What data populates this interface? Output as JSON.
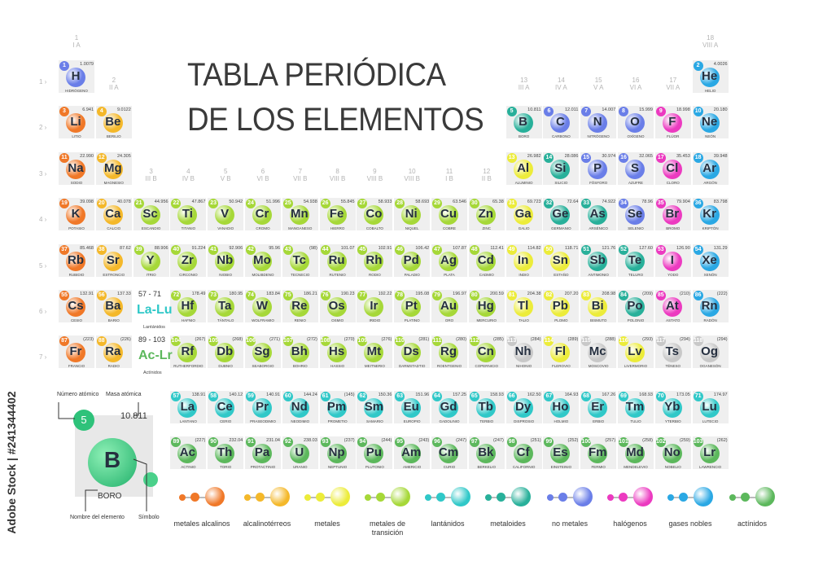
{
  "title": {
    "line1": "TABLA PERIÓDICA",
    "line2": "DE LOS ELEMENTOS"
  },
  "colors": {
    "alkali": "#f07828",
    "alkaline": "#f4b82a",
    "transition": "#a6d838",
    "post": "#ecec3a",
    "metalloid": "#28b09a",
    "nonmetal": "#6a7ee8",
    "halogen": "#ec3ac0",
    "noble": "#2aa8e4",
    "lanthanide": "#30c8c8",
    "actinide": "#5cb85c",
    "unknown": "#c8c8c8"
  },
  "groups": [
    {
      "n": "1",
      "r": "I A"
    },
    {
      "n": "2",
      "r": "II A"
    },
    {
      "n": "3",
      "r": "III B"
    },
    {
      "n": "4",
      "r": "IV B"
    },
    {
      "n": "5",
      "r": "V B"
    },
    {
      "n": "6",
      "r": "VI B"
    },
    {
      "n": "7",
      "r": "VII B"
    },
    {
      "n": "8",
      "r": "VIII B"
    },
    {
      "n": "9",
      "r": "VIII B"
    },
    {
      "n": "10",
      "r": "VIII B"
    },
    {
      "n": "11",
      "r": "I B"
    },
    {
      "n": "12",
      "r": "II B"
    },
    {
      "n": "13",
      "r": "III A"
    },
    {
      "n": "14",
      "r": "IV A"
    },
    {
      "n": "15",
      "r": "V A"
    },
    {
      "n": "16",
      "r": "VI A"
    },
    {
      "n": "17",
      "r": "VII A"
    },
    {
      "n": "18",
      "r": "VIII A"
    }
  ],
  "periods": [
    "1",
    "2",
    "3",
    "4",
    "5",
    "6",
    "7"
  ],
  "elements": [
    {
      "z": "1",
      "s": "H",
      "n": "HIDRÓGENO",
      "m": "1.0079",
      "r": 1,
      "c": 1,
      "t": "nonmetal"
    },
    {
      "z": "2",
      "s": "He",
      "n": "HELIO",
      "m": "4.0026",
      "r": 1,
      "c": 18,
      "t": "noble"
    },
    {
      "z": "3",
      "s": "Li",
      "n": "LITIO",
      "m": "6.941",
      "r": 2,
      "c": 1,
      "t": "alkali"
    },
    {
      "z": "4",
      "s": "Be",
      "n": "BERILIO",
      "m": "9.0122",
      "r": 2,
      "c": 2,
      "t": "alkaline"
    },
    {
      "z": "5",
      "s": "B",
      "n": "BORO",
      "m": "10.811",
      "r": 2,
      "c": 13,
      "t": "metalloid"
    },
    {
      "z": "6",
      "s": "C",
      "n": "CARBONO",
      "m": "12.011",
      "r": 2,
      "c": 14,
      "t": "nonmetal"
    },
    {
      "z": "7",
      "s": "N",
      "n": "NITRÓGENO",
      "m": "14.007",
      "r": 2,
      "c": 15,
      "t": "nonmetal"
    },
    {
      "z": "8",
      "s": "O",
      "n": "OXÍGENO",
      "m": "15.999",
      "r": 2,
      "c": 16,
      "t": "nonmetal"
    },
    {
      "z": "9",
      "s": "F",
      "n": "FLÚOR",
      "m": "18.998",
      "r": 2,
      "c": 17,
      "t": "halogen"
    },
    {
      "z": "10",
      "s": "Ne",
      "n": "NEÓN",
      "m": "20.180",
      "r": 2,
      "c": 18,
      "t": "noble"
    },
    {
      "z": "11",
      "s": "Na",
      "n": "SODIO",
      "m": "22.990",
      "r": 3,
      "c": 1,
      "t": "alkali"
    },
    {
      "z": "12",
      "s": "Mg",
      "n": "MAGNESIO",
      "m": "24.305",
      "r": 3,
      "c": 2,
      "t": "alkaline"
    },
    {
      "z": "13",
      "s": "Al",
      "n": "ALUMINIO",
      "m": "26.982",
      "r": 3,
      "c": 13,
      "t": "post"
    },
    {
      "z": "14",
      "s": "Si",
      "n": "SILICIO",
      "m": "28.086",
      "r": 3,
      "c": 14,
      "t": "metalloid"
    },
    {
      "z": "15",
      "s": "P",
      "n": "FÓSFORO",
      "m": "30.974",
      "r": 3,
      "c": 15,
      "t": "nonmetal"
    },
    {
      "z": "16",
      "s": "S",
      "n": "AZUFRE",
      "m": "32.065",
      "r": 3,
      "c": 16,
      "t": "nonmetal"
    },
    {
      "z": "17",
      "s": "Cl",
      "n": "CLORO",
      "m": "35.453",
      "r": 3,
      "c": 17,
      "t": "halogen"
    },
    {
      "z": "18",
      "s": "Ar",
      "n": "ARGÓN",
      "m": "39.948",
      "r": 3,
      "c": 18,
      "t": "noble"
    },
    {
      "z": "19",
      "s": "K",
      "n": "POTASIO",
      "m": "39.098",
      "r": 4,
      "c": 1,
      "t": "alkali"
    },
    {
      "z": "20",
      "s": "Ca",
      "n": "CALCIO",
      "m": "40.078",
      "r": 4,
      "c": 2,
      "t": "alkaline"
    },
    {
      "z": "21",
      "s": "Sc",
      "n": "ESCANDIO",
      "m": "44.956",
      "r": 4,
      "c": 3,
      "t": "transition"
    },
    {
      "z": "22",
      "s": "Ti",
      "n": "TITANIO",
      "m": "47.867",
      "r": 4,
      "c": 4,
      "t": "transition"
    },
    {
      "z": "23",
      "s": "V",
      "n": "VANADIO",
      "m": "50.942",
      "r": 4,
      "c": 5,
      "t": "transition"
    },
    {
      "z": "24",
      "s": "Cr",
      "n": "CROMO",
      "m": "51.996",
      "r": 4,
      "c": 6,
      "t": "transition"
    },
    {
      "z": "25",
      "s": "Mn",
      "n": "MANGANESO",
      "m": "54.938",
      "r": 4,
      "c": 7,
      "t": "transition"
    },
    {
      "z": "26",
      "s": "Fe",
      "n": "HIERRO",
      "m": "55.845",
      "r": 4,
      "c": 8,
      "t": "transition"
    },
    {
      "z": "27",
      "s": "Co",
      "n": "COBALTO",
      "m": "58.933",
      "r": 4,
      "c": 9,
      "t": "transition"
    },
    {
      "z": "28",
      "s": "Ni",
      "n": "NIQUEL",
      "m": "58.693",
      "r": 4,
      "c": 10,
      "t": "transition"
    },
    {
      "z": "29",
      "s": "Cu",
      "n": "COBRE",
      "m": "63.546",
      "r": 4,
      "c": 11,
      "t": "transition"
    },
    {
      "z": "30",
      "s": "Zn",
      "n": "ZINC",
      "m": "65.38",
      "r": 4,
      "c": 12,
      "t": "transition"
    },
    {
      "z": "31",
      "s": "Ga",
      "n": "GALIO",
      "m": "69.723",
      "r": 4,
      "c": 13,
      "t": "post"
    },
    {
      "z": "32",
      "s": "Ge",
      "n": "GERMANIO",
      "m": "72.64",
      "r": 4,
      "c": 14,
      "t": "metalloid"
    },
    {
      "z": "33",
      "s": "As",
      "n": "ARSÉNICO",
      "m": "74.922",
      "r": 4,
      "c": 15,
      "t": "metalloid"
    },
    {
      "z": "34",
      "s": "Se",
      "n": "SELENIO",
      "m": "78.96",
      "r": 4,
      "c": 16,
      "t": "nonmetal"
    },
    {
      "z": "35",
      "s": "Br",
      "n": "BROMO",
      "m": "79.904",
      "r": 4,
      "c": 17,
      "t": "halogen"
    },
    {
      "z": "36",
      "s": "Kr",
      "n": "KRIPTÓN",
      "m": "83.798",
      "r": 4,
      "c": 18,
      "t": "noble"
    },
    {
      "z": "37",
      "s": "Rb",
      "n": "RUBIDIO",
      "m": "85.468",
      "r": 5,
      "c": 1,
      "t": "alkali"
    },
    {
      "z": "38",
      "s": "Sr",
      "n": "ESTRONCIO",
      "m": "87.62",
      "r": 5,
      "c": 2,
      "t": "alkaline"
    },
    {
      "z": "39",
      "s": "Y",
      "n": "ITRIO",
      "m": "88.906",
      "r": 5,
      "c": 3,
      "t": "transition"
    },
    {
      "z": "40",
      "s": "Zr",
      "n": "CIRCONIO",
      "m": "91.224",
      "r": 5,
      "c": 4,
      "t": "transition"
    },
    {
      "z": "41",
      "s": "Nb",
      "n": "NIOBIO",
      "m": "92.906",
      "r": 5,
      "c": 5,
      "t": "transition"
    },
    {
      "z": "42",
      "s": "Mo",
      "n": "MOLIBDENO",
      "m": "95.96",
      "r": 5,
      "c": 6,
      "t": "transition"
    },
    {
      "z": "43",
      "s": "Tc",
      "n": "TECNECIO",
      "m": "(98)",
      "r": 5,
      "c": 7,
      "t": "transition"
    },
    {
      "z": "44",
      "s": "Ru",
      "n": "RUTENIO",
      "m": "101.07",
      "r": 5,
      "c": 8,
      "t": "transition"
    },
    {
      "z": "45",
      "s": "Rh",
      "n": "RODIO",
      "m": "102.91",
      "r": 5,
      "c": 9,
      "t": "transition"
    },
    {
      "z": "46",
      "s": "Pd",
      "n": "PALADIO",
      "m": "106.42",
      "r": 5,
      "c": 10,
      "t": "transition"
    },
    {
      "z": "47",
      "s": "Ag",
      "n": "PLATA",
      "m": "107.87",
      "r": 5,
      "c": 11,
      "t": "transition"
    },
    {
      "z": "48",
      "s": "Cd",
      "n": "CADMIO",
      "m": "112.41",
      "r": 5,
      "c": 12,
      "t": "transition"
    },
    {
      "z": "49",
      "s": "In",
      "n": "INDIO",
      "m": "114.82",
      "r": 5,
      "c": 13,
      "t": "post"
    },
    {
      "z": "50",
      "s": "Sn",
      "n": "ESTAÑO",
      "m": "118.71",
      "r": 5,
      "c": 14,
      "t": "post"
    },
    {
      "z": "51",
      "s": "Sb",
      "n": "ANTIMONIO",
      "m": "121.76",
      "r": 5,
      "c": 15,
      "t": "metalloid"
    },
    {
      "z": "52",
      "s": "Te",
      "n": "TELURO",
      "m": "127.60",
      "r": 5,
      "c": 16,
      "t": "metalloid"
    },
    {
      "z": "53",
      "s": "I",
      "n": "YODO",
      "m": "126.90",
      "r": 5,
      "c": 17,
      "t": "halogen"
    },
    {
      "z": "54",
      "s": "Xe",
      "n": "XENÓN",
      "m": "131.29",
      "r": 5,
      "c": 18,
      "t": "noble"
    },
    {
      "z": "55",
      "s": "Cs",
      "n": "CESIO",
      "m": "132.91",
      "r": 6,
      "c": 1,
      "t": "alkali"
    },
    {
      "z": "56",
      "s": "Ba",
      "n": "BARIO",
      "m": "137.33",
      "r": 6,
      "c": 2,
      "t": "alkaline"
    },
    {
      "z": "72",
      "s": "Hf",
      "n": "HAFNIO",
      "m": "178.49",
      "r": 6,
      "c": 4,
      "t": "transition"
    },
    {
      "z": "73",
      "s": "Ta",
      "n": "TÁNTALO",
      "m": "180.95",
      "r": 6,
      "c": 5,
      "t": "transition"
    },
    {
      "z": "74",
      "s": "W",
      "n": "WOLFRAMIO",
      "m": "183.84",
      "r": 6,
      "c": 6,
      "t": "transition"
    },
    {
      "z": "75",
      "s": "Re",
      "n": "RENIO",
      "m": "186.21",
      "r": 6,
      "c": 7,
      "t": "transition"
    },
    {
      "z": "76",
      "s": "Os",
      "n": "OSMIO",
      "m": "190.23",
      "r": 6,
      "c": 8,
      "t": "transition"
    },
    {
      "z": "77",
      "s": "Ir",
      "n": "IRIDIO",
      "m": "192.22",
      "r": 6,
      "c": 9,
      "t": "transition"
    },
    {
      "z": "78",
      "s": "Pt",
      "n": "PLATINO",
      "m": "195.08",
      "r": 6,
      "c": 10,
      "t": "transition"
    },
    {
      "z": "79",
      "s": "Au",
      "n": "ORO",
      "m": "196.97",
      "r": 6,
      "c": 11,
      "t": "transition"
    },
    {
      "z": "80",
      "s": "Hg",
      "n": "MERCURIO",
      "m": "200.59",
      "r": 6,
      "c": 12,
      "t": "transition"
    },
    {
      "z": "81",
      "s": "Tl",
      "n": "TALIO",
      "m": "204.38",
      "r": 6,
      "c": 13,
      "t": "post"
    },
    {
      "z": "82",
      "s": "Pb",
      "n": "PLOMO",
      "m": "207.20",
      "r": 6,
      "c": 14,
      "t": "post"
    },
    {
      "z": "83",
      "s": "Bi",
      "n": "BISMUTO",
      "m": "208.98",
      "r": 6,
      "c": 15,
      "t": "post"
    },
    {
      "z": "84",
      "s": "Po",
      "n": "POLONIO",
      "m": "(209)",
      "r": 6,
      "c": 16,
      "t": "metalloid"
    },
    {
      "z": "85",
      "s": "At",
      "n": "ASTATO",
      "m": "(210)",
      "r": 6,
      "c": 17,
      "t": "halogen"
    },
    {
      "z": "86",
      "s": "Rn",
      "n": "RADÓN",
      "m": "(222)",
      "r": 6,
      "c": 18,
      "t": "noble"
    },
    {
      "z": "87",
      "s": "Fr",
      "n": "FRANCIO",
      "m": "(223)",
      "r": 7,
      "c": 1,
      "t": "alkali"
    },
    {
      "z": "88",
      "s": "Ra",
      "n": "RADIO",
      "m": "(226)",
      "r": 7,
      "c": 2,
      "t": "alkaline"
    },
    {
      "z": "104",
      "s": "Rf",
      "n": "RUTHERFORDIO",
      "m": "(267)",
      "r": 7,
      "c": 4,
      "t": "transition"
    },
    {
      "z": "105",
      "s": "Db",
      "n": "DUBNIO",
      "m": "(268)",
      "r": 7,
      "c": 5,
      "t": "transition"
    },
    {
      "z": "106",
      "s": "Sg",
      "n": "SEABORGIO",
      "m": "(271)",
      "r": 7,
      "c": 6,
      "t": "transition"
    },
    {
      "z": "107",
      "s": "Bh",
      "n": "BOHRIO",
      "m": "(272)",
      "r": 7,
      "c": 7,
      "t": "transition"
    },
    {
      "z": "108",
      "s": "Hs",
      "n": "HASSIO",
      "m": "(270)",
      "r": 7,
      "c": 8,
      "t": "transition"
    },
    {
      "z": "109",
      "s": "Mt",
      "n": "MEITNERIO",
      "m": "(276)",
      "r": 7,
      "c": 9,
      "t": "transition"
    },
    {
      "z": "110",
      "s": "Ds",
      "n": "DARMSTADTIO",
      "m": "(281)",
      "r": 7,
      "c": 10,
      "t": "transition"
    },
    {
      "z": "111",
      "s": "Rg",
      "n": "ROENTGENIO",
      "m": "(280)",
      "r": 7,
      "c": 11,
      "t": "transition"
    },
    {
      "z": "112",
      "s": "Cn",
      "n": "COPERNICIO",
      "m": "(285)",
      "r": 7,
      "c": 12,
      "t": "transition"
    },
    {
      "z": "113",
      "s": "Nh",
      "n": "NIHONIO",
      "m": "(284)",
      "r": 7,
      "c": 13,
      "t": "unknown"
    },
    {
      "z": "114",
      "s": "Fl",
      "n": "FLEROVIO",
      "m": "(289)",
      "r": 7,
      "c": 14,
      "t": "post"
    },
    {
      "z": "115",
      "s": "Mc",
      "n": "MOSCOVIO",
      "m": "(288)",
      "r": 7,
      "c": 15,
      "t": "unknown"
    },
    {
      "z": "116",
      "s": "Lv",
      "n": "LIVERMORIO",
      "m": "(293)",
      "r": 7,
      "c": 16,
      "t": "post"
    },
    {
      "z": "117",
      "s": "Ts",
      "n": "TÉNESO",
      "m": "(294)",
      "r": 7,
      "c": 17,
      "t": "unknown"
    },
    {
      "z": "118",
      "s": "Og",
      "n": "OGANESÓN",
      "m": "(294)",
      "r": 7,
      "c": 18,
      "t": "unknown"
    },
    {
      "z": "57",
      "s": "La",
      "n": "LANTANO",
      "m": "138.91",
      "r": 9,
      "c": 4,
      "t": "lanthanide"
    },
    {
      "z": "58",
      "s": "Ce",
      "n": "CERIO",
      "m": "140.12",
      "r": 9,
      "c": 5,
      "t": "lanthanide"
    },
    {
      "z": "59",
      "s": "Pr",
      "n": "PRASEODIMIO",
      "m": "140.91",
      "r": 9,
      "c": 6,
      "t": "lanthanide"
    },
    {
      "z": "60",
      "s": "Nd",
      "n": "NEODIMIO",
      "m": "144.24",
      "r": 9,
      "c": 7,
      "t": "lanthanide"
    },
    {
      "z": "61",
      "s": "Pm",
      "n": "PROMETIO",
      "m": "(145)",
      "r": 9,
      "c": 8,
      "t": "lanthanide"
    },
    {
      "z": "62",
      "s": "Sm",
      "n": "SAMARIO",
      "m": "150.36",
      "r": 9,
      "c": 9,
      "t": "lanthanide"
    },
    {
      "z": "63",
      "s": "Eu",
      "n": "EUROPIO",
      "m": "151.96",
      "r": 9,
      "c": 10,
      "t": "lanthanide"
    },
    {
      "z": "64",
      "s": "Gd",
      "n": "GADOLINIO",
      "m": "157.25",
      "r": 9,
      "c": 11,
      "t": "lanthanide"
    },
    {
      "z": "65",
      "s": "Tb",
      "n": "TERBIO",
      "m": "158.93",
      "r": 9,
      "c": 12,
      "t": "lanthanide"
    },
    {
      "z": "66",
      "s": "Dy",
      "n": "DISPROSIO",
      "m": "162.50",
      "r": 9,
      "c": 13,
      "t": "lanthanide"
    },
    {
      "z": "67",
      "s": "Ho",
      "n": "HOLMIO",
      "m": "164.93",
      "r": 9,
      "c": 14,
      "t": "lanthanide"
    },
    {
      "z": "68",
      "s": "Er",
      "n": "ERBIO",
      "m": "167.26",
      "r": 9,
      "c": 15,
      "t": "lanthanide"
    },
    {
      "z": "69",
      "s": "Tm",
      "n": "TULIO",
      "m": "168.93",
      "r": 9,
      "c": 16,
      "t": "lanthanide"
    },
    {
      "z": "70",
      "s": "Yb",
      "n": "YTERBIO",
      "m": "173.05",
      "r": 9,
      "c": 17,
      "t": "lanthanide"
    },
    {
      "z": "71",
      "s": "Lu",
      "n": "LUTECIO",
      "m": "174.97",
      "r": 9,
      "c": 18,
      "t": "lanthanide"
    },
    {
      "z": "89",
      "s": "Ac",
      "n": "ACTINIO",
      "m": "(227)",
      "r": 10,
      "c": 4,
      "t": "actinide"
    },
    {
      "z": "90",
      "s": "Th",
      "n": "TORIO",
      "m": "232.04",
      "r": 10,
      "c": 5,
      "t": "actinide"
    },
    {
      "z": "91",
      "s": "Pa",
      "n": "PROTACTINIO",
      "m": "231.04",
      "r": 10,
      "c": 6,
      "t": "actinide"
    },
    {
      "z": "92",
      "s": "U",
      "n": "URANIO",
      "m": "238.03",
      "r": 10,
      "c": 7,
      "t": "actinide"
    },
    {
      "z": "93",
      "s": "Np",
      "n": "NEPTUNIO",
      "m": "(237)",
      "r": 10,
      "c": 8,
      "t": "actinide"
    },
    {
      "z": "94",
      "s": "Pu",
      "n": "PLUTONIO",
      "m": "(244)",
      "r": 10,
      "c": 9,
      "t": "actinide"
    },
    {
      "z": "95",
      "s": "Am",
      "n": "AMERICIO",
      "m": "(243)",
      "r": 10,
      "c": 10,
      "t": "actinide"
    },
    {
      "z": "96",
      "s": "Cm",
      "n": "CURIO",
      "m": "(247)",
      "r": 10,
      "c": 11,
      "t": "actinide"
    },
    {
      "z": "97",
      "s": "Bk",
      "n": "BERKELIO",
      "m": "(247)",
      "r": 10,
      "c": 12,
      "t": "actinide"
    },
    {
      "z": "98",
      "s": "Cf",
      "n": "CALIFORNIO",
      "m": "(251)",
      "r": 10,
      "c": 13,
      "t": "actinide"
    },
    {
      "z": "99",
      "s": "Es",
      "n": "EINSTEINIO",
      "m": "(252)",
      "r": 10,
      "c": 14,
      "t": "actinide"
    },
    {
      "z": "100",
      "s": "Fm",
      "n": "FERMIO",
      "m": "(257)",
      "r": 10,
      "c": 15,
      "t": "actinide"
    },
    {
      "z": "101",
      "s": "Md",
      "n": "MENDELEVIO",
      "m": "(258)",
      "r": 10,
      "c": 16,
      "t": "actinide"
    },
    {
      "z": "102",
      "s": "No",
      "n": "NOBELIO",
      "m": "(259)",
      "r": 10,
      "c": 17,
      "t": "actinide"
    },
    {
      "z": "103",
      "s": "Lr",
      "n": "LAWRENCIO",
      "m": "(262)",
      "r": 10,
      "c": 18,
      "t": "actinide"
    }
  ],
  "placeholders": {
    "la": {
      "range": "57 - 71",
      "sym": "La-Lu",
      "name": "Lantánidos"
    },
    "ac": {
      "range": "89 - 103",
      "sym": "Ac-Lr",
      "name": "Actínidos"
    }
  },
  "key": {
    "number_label": "Número atómico",
    "mass_label": "Masa atómica",
    "name_label": "Nombre del elemento",
    "symbol_label": "Símbolo",
    "number": "5",
    "mass": "10.811",
    "symbol": "B",
    "name": "BORO"
  },
  "legend": [
    {
      "t": "alkali",
      "label": "metales alcalinos"
    },
    {
      "t": "alkaline",
      "label": "alcalinotérreos"
    },
    {
      "t": "post",
      "label": "metales"
    },
    {
      "t": "transition",
      "label": "metales de transición"
    },
    {
      "t": "lanthanide",
      "label": "lantánidos"
    },
    {
      "t": "metalloid",
      "label": "metaloides"
    },
    {
      "t": "nonmetal",
      "label": "no metales"
    },
    {
      "t": "halogen",
      "label": "halógenos"
    },
    {
      "t": "noble",
      "label": "gases nobles"
    },
    {
      "t": "actinide",
      "label": "actínidos"
    }
  ],
  "watermark": "Adobe Stock | #241344402"
}
